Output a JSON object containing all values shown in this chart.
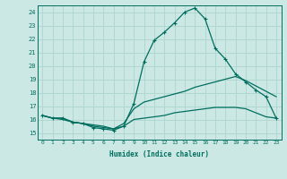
{
  "title": "",
  "xlabel": "Humidex (Indice chaleur)",
  "bg_color": "#cce8e4",
  "grid_color": "#b0d8d0",
  "line_color": "#006e5e",
  "x_ticks": [
    0,
    1,
    2,
    3,
    4,
    5,
    6,
    7,
    8,
    9,
    10,
    11,
    12,
    13,
    14,
    15,
    16,
    17,
    18,
    19,
    20,
    21,
    22,
    23
  ],
  "y_ticks": [
    15,
    16,
    17,
    18,
    19,
    20,
    21,
    22,
    23,
    24
  ],
  "xlim": [
    -0.5,
    23.5
  ],
  "ylim": [
    14.5,
    24.5
  ],
  "series": [
    {
      "x": [
        0,
        1,
        2,
        3,
        4,
        5,
        6,
        7,
        8,
        9,
        10,
        11,
        12,
        13,
        14,
        15,
        16,
        17,
        18,
        19,
        20,
        21,
        22,
        23
      ],
      "y": [
        16.3,
        16.1,
        16.1,
        15.8,
        15.7,
        15.5,
        15.4,
        15.3,
        15.5,
        16.0,
        16.1,
        16.2,
        16.3,
        16.5,
        16.6,
        16.7,
        16.8,
        16.9,
        16.9,
        16.9,
        16.8,
        16.5,
        16.2,
        16.1
      ],
      "marker": false,
      "lw": 0.9
    },
    {
      "x": [
        0,
        1,
        2,
        3,
        4,
        5,
        6,
        7,
        8,
        9,
        10,
        11,
        12,
        13,
        14,
        15,
        16,
        17,
        18,
        19,
        20,
        21,
        22,
        23
      ],
      "y": [
        16.3,
        16.1,
        16.0,
        15.8,
        15.7,
        15.6,
        15.5,
        15.3,
        15.7,
        16.8,
        17.3,
        17.5,
        17.7,
        17.9,
        18.1,
        18.4,
        18.6,
        18.8,
        19.0,
        19.2,
        18.9,
        18.5,
        18.1,
        17.7
      ],
      "marker": false,
      "lw": 0.9
    },
    {
      "x": [
        0,
        1,
        2,
        3,
        4,
        5,
        6,
        7,
        8,
        9,
        10,
        11,
        12,
        13,
        14,
        15,
        16,
        17,
        18,
        19,
        20,
        21,
        22,
        23
      ],
      "y": [
        16.3,
        16.1,
        16.1,
        15.8,
        15.7,
        15.4,
        15.3,
        15.2,
        15.5,
        17.2,
        20.3,
        21.9,
        22.5,
        23.2,
        24.0,
        24.3,
        23.5,
        21.3,
        20.5,
        19.4,
        18.8,
        18.2,
        17.7,
        16.1
      ],
      "marker": true,
      "lw": 0.9
    }
  ]
}
